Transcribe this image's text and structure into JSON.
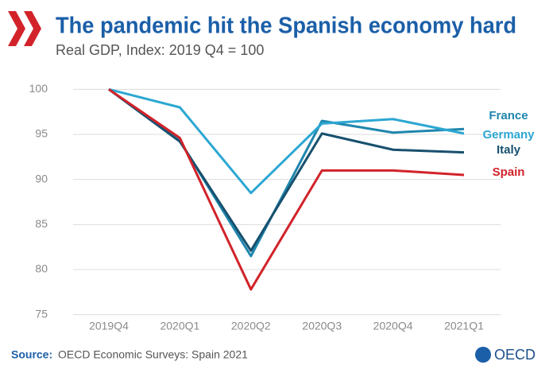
{
  "chart_data": {
    "type": "line",
    "title": "The pandemic hit the Spanish economy hard",
    "subtitle": "Real GDP, Index: 2019 Q4 = 100",
    "categories": [
      "2019Q4",
      "2020Q1",
      "2020Q2",
      "2020Q3",
      "2020Q4",
      "2021Q1"
    ],
    "series": [
      {
        "name": "France",
        "color": "#1f86ad",
        "values": [
          100,
          94.3,
          81.5,
          96.5,
          95.2,
          95.6
        ]
      },
      {
        "name": "Germany",
        "color": "#2ca7d2",
        "values": [
          100,
          98.0,
          88.5,
          96.2,
          96.7,
          95.1
        ]
      },
      {
        "name": "Italy",
        "color": "#17506e",
        "values": [
          100,
          94.2,
          82.1,
          95.1,
          93.3,
          93.0
        ]
      },
      {
        "name": "Spain",
        "color": "#d2232a",
        "values": [
          100,
          94.6,
          77.8,
          91.0,
          91.0,
          90.5
        ]
      }
    ],
    "ylim": [
      74,
      101
    ],
    "yticks": [
      75,
      80,
      85,
      90,
      95,
      100
    ],
    "grid": true,
    "source_label": "Source:",
    "source": "OECD Economic Surveys: Spain 2021",
    "logo": "OECD"
  }
}
